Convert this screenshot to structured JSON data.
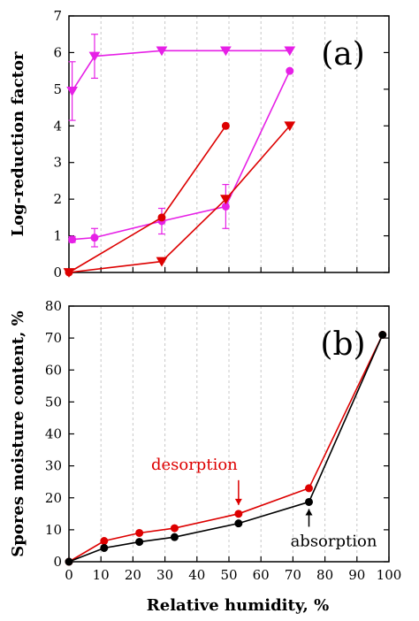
{
  "chart_data": [
    {
      "type": "line",
      "panel": "(a)",
      "ylabel": "Log-reduction factor",
      "xlim": [
        0,
        100
      ],
      "ylim": [
        0,
        7
      ],
      "yticks": [
        0,
        1,
        2,
        3,
        4,
        5,
        6,
        7
      ],
      "grid": "vertical dashed",
      "colors": {
        "magenta": "#e620e6",
        "red": "#dd0000"
      },
      "series": [
        {
          "marker": "triangle-down",
          "color": "#e620e6",
          "x": [
            1,
            8,
            29,
            49,
            69
          ],
          "y": [
            4.95,
            5.9,
            6.05,
            6.05,
            6.05
          ],
          "err": [
            0.8,
            0.6,
            0,
            0,
            0
          ]
        },
        {
          "marker": "circle",
          "color": "#e620e6",
          "x": [
            1,
            8,
            29,
            49,
            69
          ],
          "y": [
            0.9,
            0.95,
            1.4,
            1.8,
            5.5
          ],
          "err": [
            0.08,
            0.25,
            0.35,
            0.6,
            0
          ]
        },
        {
          "marker": "circle",
          "color": "#dd0000",
          "x": [
            0,
            29,
            49
          ],
          "y": [
            0,
            1.5,
            4.0
          ],
          "err": [
            0,
            0,
            0
          ]
        },
        {
          "marker": "triangle-down",
          "color": "#dd0000",
          "x": [
            0,
            29,
            49,
            69
          ],
          "y": [
            0,
            0.3,
            2.0,
            4.0
          ],
          "err": [
            0,
            0,
            0,
            0
          ]
        }
      ]
    },
    {
      "type": "line",
      "panel": "(b)",
      "xlabel": "Relative humidity, %",
      "ylabel": "Spores moisture content, %",
      "xlim": [
        0,
        100
      ],
      "ylim": [
        0,
        80
      ],
      "xticks": [
        0,
        10,
        20,
        30,
        40,
        50,
        60,
        70,
        80,
        90,
        100
      ],
      "yticks": [
        0,
        10,
        20,
        30,
        40,
        50,
        60,
        70,
        80
      ],
      "grid": "vertical dashed",
      "series": [
        {
          "name": "desorption",
          "color": "#dd0000",
          "marker": "circle",
          "x": [
            0,
            11,
            22,
            33,
            53,
            75,
            98
          ],
          "y": [
            0,
            6.5,
            9.0,
            10.5,
            15.0,
            23.0,
            71.0
          ]
        },
        {
          "name": "absorption",
          "color": "#000000",
          "marker": "circle",
          "x": [
            0,
            11,
            22,
            33,
            53,
            75,
            98
          ],
          "y": [
            0,
            4.3,
            6.2,
            7.7,
            12.0,
            18.7,
            71.0
          ]
        }
      ],
      "annotations": [
        {
          "text": "desorption",
          "color": "#dd0000",
          "arrow_to": [
            53,
            15.0
          ]
        },
        {
          "text": "absorption",
          "color": "#000000",
          "arrow_to": [
            75,
            18.7
          ]
        }
      ]
    }
  ]
}
